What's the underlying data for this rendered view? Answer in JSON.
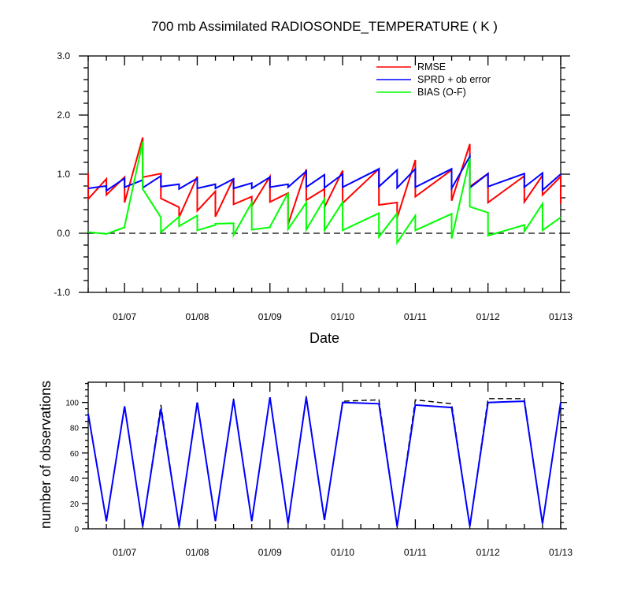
{
  "chart_data": [
    {
      "type": "line",
      "title": "700 mb Assimilated RADIOSONDE_TEMPERATURE ( K )",
      "xlabel": "Date",
      "ylabel": "",
      "x_tick_labels": [
        "01/07",
        "01/08",
        "01/09",
        "01/10",
        "01/11",
        "01/12",
        "01/13"
      ],
      "y_tick_labels": [
        "-1.0",
        "0.0",
        "1.0",
        "2.0",
        "3.0"
      ],
      "ylim": [
        -1.0,
        3.0
      ],
      "xlim": [
        0.5,
        7.0
      ],
      "x_ticks": [
        1,
        2,
        3,
        4,
        5,
        6,
        7
      ],
      "y_ticks": [
        -1,
        0,
        1,
        2,
        3
      ],
      "x_unit": "days; label 01/07 at 1, 01/13 at 7",
      "zero_line": "dashed",
      "legend_position": "top-right",
      "series": [
        {
          "name": "RMSE",
          "color": "#ff0000",
          "x": [
            0.5,
            0.5,
            0.75,
            0.75,
            1.0,
            1.0,
            1.25,
            1.25,
            1.5,
            1.5,
            1.75,
            1.75,
            2.0,
            2.0,
            2.25,
            2.25,
            2.5,
            2.5,
            2.75,
            2.75,
            3.0,
            3.0,
            3.25,
            3.25,
            3.5,
            3.5,
            3.75,
            3.75,
            4.0,
            4.0,
            4.5,
            4.5,
            4.75,
            4.75,
            5.0,
            5.0,
            5.5,
            5.5,
            5.75,
            5.75,
            6.0,
            6.0,
            6.5,
            6.5,
            6.75,
            6.75,
            7.0,
            7.0
          ],
          "values": [
            1.02,
            0.58,
            0.92,
            0.65,
            0.95,
            0.52,
            1.62,
            0.95,
            1.01,
            0.59,
            0.44,
            0.27,
            0.96,
            0.38,
            0.71,
            0.28,
            0.93,
            0.49,
            0.62,
            0.46,
            0.96,
            0.53,
            0.68,
            0.15,
            1.08,
            0.56,
            0.75,
            0.44,
            1.06,
            0.51,
            1.09,
            0.48,
            0.52,
            0.26,
            1.24,
            0.62,
            1.07,
            0.55,
            1.51,
            0.79,
            1.01,
            0.52,
            0.97,
            0.53,
            0.98,
            0.65,
            0.96,
            0.5
          ]
        },
        {
          "name": "SPRD + ob error",
          "color": "#0000ff",
          "x": [
            0.5,
            0.75,
            0.75,
            1.0,
            1.0,
            1.25,
            1.25,
            1.5,
            1.5,
            1.75,
            1.75,
            2.0,
            2.0,
            2.25,
            2.25,
            2.5,
            2.5,
            2.75,
            2.75,
            3.0,
            3.0,
            3.25,
            3.25,
            3.5,
            3.5,
            3.75,
            3.75,
            4.0,
            4.0,
            4.5,
            4.5,
            4.75,
            4.75,
            5.0,
            5.0,
            5.5,
            5.5,
            5.75,
            5.75,
            6.0,
            6.0,
            6.5,
            6.5,
            6.75,
            6.75,
            7.0
          ],
          "values": [
            0.76,
            0.8,
            0.72,
            0.93,
            0.78,
            0.9,
            0.77,
            0.97,
            0.79,
            0.83,
            0.75,
            0.93,
            0.76,
            0.83,
            0.76,
            0.92,
            0.76,
            0.85,
            0.76,
            0.95,
            0.78,
            0.83,
            0.78,
            1.05,
            0.78,
            0.99,
            0.77,
            1.0,
            0.78,
            1.09,
            0.79,
            1.07,
            0.77,
            1.09,
            0.78,
            1.09,
            0.76,
            1.3,
            0.77,
            1.01,
            0.79,
            1.01,
            0.78,
            1.02,
            0.73,
            1.0
          ]
        },
        {
          "name": "BIAS (O-F)",
          "color": "#00ff00",
          "x": [
            0.5,
            0.75,
            1.0,
            1.0,
            1.25,
            1.25,
            1.5,
            1.5,
            1.75,
            1.75,
            2.0,
            2.0,
            2.25,
            2.25,
            2.5,
            2.5,
            2.75,
            2.75,
            3.0,
            3.0,
            3.25,
            3.25,
            3.5,
            3.5,
            3.75,
            3.75,
            4.0,
            4.0,
            4.5,
            4.5,
            4.75,
            4.75,
            5.0,
            5.0,
            5.5,
            5.5,
            5.75,
            5.75,
            6.0,
            6.0,
            6.5,
            6.5,
            6.75,
            6.75,
            7.0
          ],
          "values": [
            0.02,
            -0.01,
            0.1,
            0.12,
            1.55,
            0.75,
            0.27,
            0.02,
            0.28,
            0.12,
            0.3,
            0.05,
            0.14,
            0.16,
            0.17,
            -0.03,
            0.52,
            0.06,
            0.1,
            0.11,
            0.68,
            0.07,
            0.52,
            0.06,
            0.58,
            0.05,
            0.53,
            0.05,
            0.34,
            -0.06,
            0.34,
            -0.16,
            0.3,
            0.05,
            0.33,
            -0.09,
            1.27,
            0.45,
            0.35,
            -0.04,
            0.14,
            0.03,
            0.5,
            0.05,
            0.27
          ]
        }
      ]
    },
    {
      "type": "line",
      "title": "",
      "xlabel": "",
      "ylabel": "number of observations",
      "x_tick_labels": [
        "01/07",
        "01/08",
        "01/09",
        "01/10",
        "01/11",
        "01/12",
        "01/13"
      ],
      "y_tick_labels": [
        "0",
        "20",
        "40",
        "60",
        "80",
        "100"
      ],
      "ylim": [
        0,
        116
      ],
      "xlim": [
        0.5,
        7.0
      ],
      "x_ticks": [
        1,
        2,
        3,
        4,
        5,
        6,
        7
      ],
      "y_ticks": [
        0,
        20,
        40,
        60,
        80,
        100
      ],
      "x_unit": "days; label 01/07 at 1, 01/13 at 7",
      "series": [
        {
          "name": "",
          "color": "#000000",
          "style": "dashed",
          "x": [
            0.5,
            0.75,
            1.0,
            1.25,
            1.5,
            1.75,
            2.0,
            2.25,
            2.5,
            2.75,
            3.0,
            3.25,
            3.5,
            3.75,
            4.0,
            4.5,
            4.75,
            5.0,
            5.5,
            5.75,
            6.0,
            6.5,
            6.75,
            7.0
          ],
          "values": [
            91,
            6,
            97,
            2,
            98,
            2,
            101,
            6,
            103,
            6,
            104,
            4,
            105,
            7,
            101,
            102,
            2,
            102,
            99,
            2,
            103,
            103,
            4,
            100
          ]
        },
        {
          "name": "",
          "color": "#0000ff",
          "style": "solid",
          "x": [
            0.5,
            0.75,
            1.0,
            1.25,
            1.5,
            1.75,
            2.0,
            2.25,
            2.5,
            2.75,
            3.0,
            3.25,
            3.5,
            3.75,
            4.0,
            4.5,
            4.75,
            5.0,
            5.5,
            5.75,
            6.0,
            6.5,
            6.75,
            7.0
          ],
          "values": [
            91,
            6,
            97,
            2,
            95,
            2,
            100,
            6,
            102,
            6,
            104,
            4,
            104,
            7,
            100,
            99,
            2,
            98,
            96,
            2,
            100,
            101,
            4,
            100
          ]
        }
      ]
    }
  ]
}
